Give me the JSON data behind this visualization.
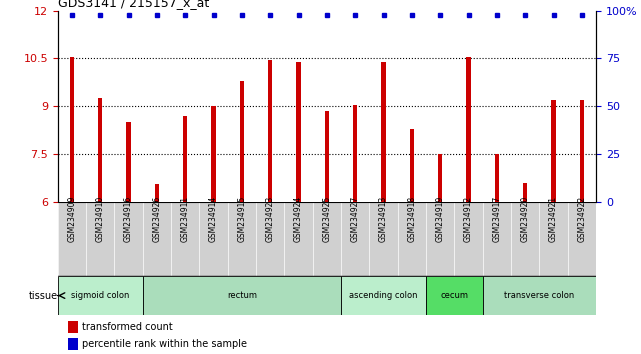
{
  "title": "GDS3141 / 215157_x_at",
  "samples": [
    "GSM234909",
    "GSM234910",
    "GSM234916",
    "GSM234926",
    "GSM234911",
    "GSM234914",
    "GSM234915",
    "GSM234923",
    "GSM234924",
    "GSM234925",
    "GSM234927",
    "GSM234913",
    "GSM234918",
    "GSM234919",
    "GSM234912",
    "GSM234917",
    "GSM234920",
    "GSM234921",
    "GSM234922"
  ],
  "transformed_counts": [
    10.55,
    9.25,
    8.5,
    6.55,
    8.7,
    9.0,
    9.8,
    10.45,
    10.4,
    8.85,
    9.05,
    10.4,
    8.3,
    7.5,
    10.55,
    7.5,
    6.6,
    9.2,
    9.2
  ],
  "bar_color": "#cc0000",
  "dot_color": "#0000cc",
  "ylim_left": [
    6,
    12
  ],
  "ylim_right": [
    0,
    100
  ],
  "yticks_left": [
    6,
    7.5,
    9,
    10.5,
    12
  ],
  "yticks_right": [
    0,
    25,
    50,
    75,
    100
  ],
  "tissue_groups": [
    {
      "label": "sigmoid colon",
      "start": 0,
      "end": 3,
      "color": "#bbeecc"
    },
    {
      "label": "rectum",
      "start": 3,
      "end": 10,
      "color": "#aaddbb"
    },
    {
      "label": "ascending colon",
      "start": 10,
      "end": 13,
      "color": "#bbeecc"
    },
    {
      "label": "cecum",
      "start": 13,
      "end": 15,
      "color": "#55dd66"
    },
    {
      "label": "transverse colon",
      "start": 15,
      "end": 19,
      "color": "#aaddbb"
    }
  ],
  "legend_count_label": "transformed count",
  "legend_pct_label": "percentile rank within the sample",
  "tick_bg_color": "#d0d0d0",
  "bar_width": 0.15
}
